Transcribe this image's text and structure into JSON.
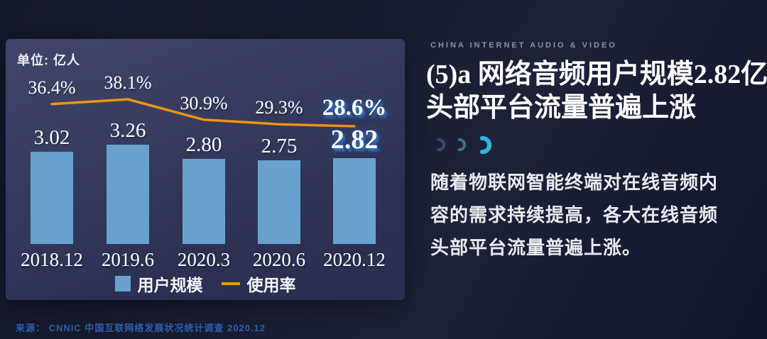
{
  "page": {
    "eyebrow": "CHINA INTERNET AUDIO & VIDEO",
    "title_line1": "(5)a 网络音频用户规模2.82亿，",
    "title_line2": "头部平台流量普遍上涨",
    "body_lines": [
      "随着物联网智能终端对在线音频内",
      "容的需求持续提高，各大在线音频",
      "头部平台流量普遍上涨。"
    ],
    "source": "来源：  CNNIC 中国互联网络发展状况统计调查 2020.12"
  },
  "chart_data": {
    "type": "bar+line",
    "unit_label": "单位:  亿人",
    "categories": [
      "2018.12",
      "2019.6",
      "2020.3",
      "2020.6",
      "2020.12"
    ],
    "series": [
      {
        "name": "用户规模",
        "type": "bar",
        "unit": "亿人",
        "values": [
          3.02,
          3.26,
          2.8,
          2.75,
          2.82
        ],
        "color": "#68a2cc"
      },
      {
        "name": "使用率",
        "type": "line",
        "unit": "%",
        "values": [
          36.4,
          38.1,
          30.9,
          29.3,
          28.6
        ],
        "color": "#ee9412"
      }
    ],
    "highlight_index": 4,
    "legend": [
      "用户规模",
      "使用率"
    ],
    "legend_position": "bottom",
    "grid": false
  },
  "colors": {
    "bar_blue": "#68a2cc",
    "line_orange": "#ee9412",
    "highlight_glow": "#2c76cd",
    "panel_bg_top": "#414669",
    "panel_bg_bottom": "#2a2e50",
    "page_bg": "#171b2e",
    "eyebrow_gray": "#8a8fa3",
    "source_blue": "#2e5fb0",
    "crescent_dim": "#3c4a66",
    "crescent_mid": "#3f6d90",
    "crescent_bright": "#2cb6e2"
  }
}
